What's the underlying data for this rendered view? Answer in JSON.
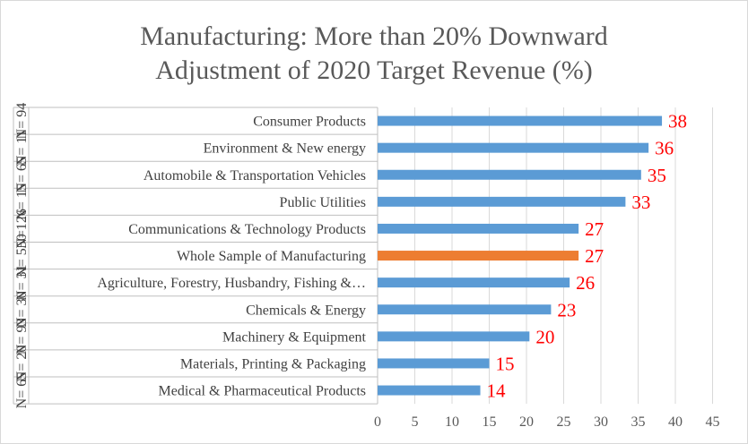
{
  "chart_data": {
    "type": "bar",
    "orientation": "horizontal",
    "title": [
      "Manufacturing:  More than 20% Downward",
      "Adjustment  of 2020 Target Revenue  (%)"
    ],
    "categories": [
      "Consumer Products",
      "Environment & New energy",
      "Automobile & Transportation Vehicles",
      "Public Utilities",
      "Communications & Technology Products",
      "Whole Sample of Manufacturing",
      "Agriculture, Forestry, Husbandry, Fishing &…",
      "Chemicals & Energy",
      "Machinery & Equipment",
      "Materials, Printing & Packaging",
      "Medical & Pharmaceutical Products"
    ],
    "sample_sizes": [
      "N= 94",
      "N= 11",
      "N= 65",
      "N= 15",
      "N=126",
      "N= 550",
      "N= 31",
      "N= 30",
      "N= 93",
      "N= 20",
      "N= 65"
    ],
    "values": [
      38.2,
      36.4,
      35.4,
      33.3,
      27.0,
      27.0,
      25.8,
      23.3,
      20.4,
      15.0,
      13.8
    ],
    "value_labels": [
      "38",
      "36",
      "35",
      "33",
      "27",
      "27",
      "26",
      "23",
      "20",
      "15",
      "14"
    ],
    "bar_colors": [
      "#5b9bd5",
      "#5b9bd5",
      "#5b9bd5",
      "#5b9bd5",
      "#5b9bd5",
      "#ed7d31",
      "#5b9bd5",
      "#5b9bd5",
      "#5b9bd5",
      "#5b9bd5",
      "#5b9bd5"
    ],
    "xlim": [
      0,
      45
    ],
    "xticks": [
      0,
      5,
      10,
      15,
      20,
      25,
      30,
      35,
      40,
      45
    ],
    "grid": "vertical",
    "gridline_color": "#d9d9d9",
    "value_label_color": "#ff0000"
  }
}
